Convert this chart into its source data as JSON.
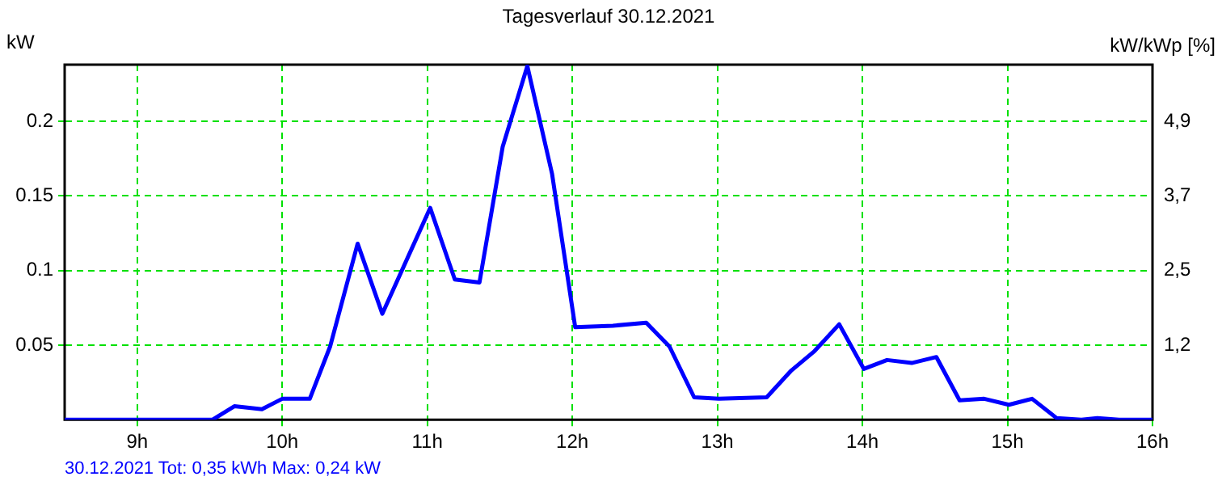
{
  "chart_data": {
    "type": "line",
    "title": "Tagesverlauf 30.12.2021",
    "ylabel": "kW",
    "y2label": "kW/kWp [%]",
    "annotations": [
      "30.12.2021 Tot: 0,35 kWh Max: 0,24 kW"
    ],
    "x": [
      8.5,
      9.52,
      9.67,
      9.86,
      10.0,
      10.19,
      10.33,
      10.52,
      10.69,
      11.02,
      11.19,
      11.36,
      11.52,
      11.69,
      11.86,
      12.02,
      12.28,
      12.51,
      12.67,
      12.84,
      13.01,
      13.34,
      13.51,
      13.67,
      13.84,
      14.01,
      14.17,
      14.34,
      14.51,
      14.67,
      14.84,
      15.01,
      15.17,
      15.34,
      15.51,
      15.62,
      15.77,
      16.0
    ],
    "series": [
      {
        "color": "#0000ff",
        "values": [
          0,
          0,
          0.009,
          0.007,
          0.014,
          0.014,
          0.049,
          0.118,
          0.071,
          0.142,
          0.094,
          0.092,
          0.183,
          0.237,
          0.165,
          0.062,
          0.063,
          0.065,
          0.049,
          0.015,
          0.014,
          0.015,
          0.033,
          0.046,
          0.064,
          0.034,
          0.04,
          0.038,
          0.042,
          0.013,
          0.014,
          0.01,
          0.014,
          0.001,
          0,
          0.001,
          0,
          0
        ]
      }
    ],
    "xlim": [
      8.5,
      16
    ],
    "xticks": [
      {
        "value": 9,
        "label": "9h"
      },
      {
        "value": 10,
        "label": "10h"
      },
      {
        "value": 11,
        "label": "11h"
      },
      {
        "value": 12,
        "label": "12h"
      },
      {
        "value": 13,
        "label": "13h"
      },
      {
        "value": 14,
        "label": "14h"
      },
      {
        "value": 15,
        "label": "15h"
      },
      {
        "value": 16,
        "label": "16h"
      }
    ],
    "ylim": [
      0,
      0.238
    ],
    "yticks": [
      0.05,
      0.1,
      0.15,
      0.2
    ],
    "y2lim": [
      0,
      5.83
    ],
    "y2ticks": [
      {
        "value": 1.225,
        "label": "1,2"
      },
      {
        "value": 2.45,
        "label": "2,5"
      },
      {
        "value": 3.675,
        "label": "3,7"
      },
      {
        "value": 4.9,
        "label": "4,9"
      }
    ],
    "grid": true,
    "legend": false,
    "marker": "none",
    "line_style": "solid"
  }
}
